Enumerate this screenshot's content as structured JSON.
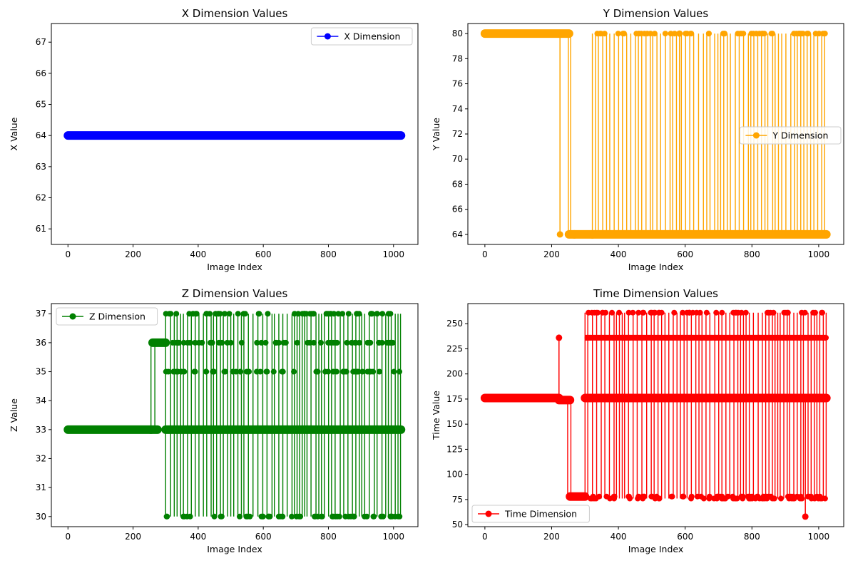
{
  "chart_data": [
    {
      "type": "line",
      "title": "X Dimension Values",
      "xlabel": "Image Index",
      "ylabel": "X Value",
      "xlim": [
        -51,
        1075
      ],
      "ylim": [
        60.5,
        67.6
      ],
      "xticks": [
        0,
        200,
        400,
        600,
        800,
        1000
      ],
      "yticks": [
        61,
        62,
        63,
        64,
        65,
        66,
        67
      ],
      "legend_position": "top-right",
      "color": "#0000ff",
      "series": [
        {
          "name": "X Dimension",
          "marker": "circle",
          "x": [
            0,
            1023
          ],
          "values": [
            64,
            64
          ]
        }
      ],
      "blocks": []
    },
    {
      "type": "line",
      "title": "Y Dimension Values",
      "xlabel": "Image Index",
      "ylabel": "Y Value",
      "xlim": [
        -51,
        1075
      ],
      "ylim": [
        63.2,
        80.8
      ],
      "xticks": [
        0,
        200,
        400,
        600,
        800,
        1000
      ],
      "yticks": [
        64,
        66,
        68,
        70,
        72,
        74,
        76,
        78,
        80
      ],
      "legend_position": "center-right",
      "color": "#ffa500",
      "series": [
        {
          "name": "Y Dimension",
          "marker": "circle",
          "x": [],
          "values": []
        }
      ],
      "levels": [
        80,
        64
      ],
      "segments": [
        [
          0,
          252,
          80
        ],
        [
          252,
          268,
          64
        ],
        [
          268,
          322,
          64
        ],
        [
          322,
          1023,
          64
        ]
      ],
      "spikes": [
        [
          225,
          64
        ],
        [
          583,
          80
        ]
      ],
      "blocks": [
        {
          "x": [
            250,
            268
          ],
          "color": "#ffa500",
          "range": [
            64,
            80
          ]
        },
        {
          "x": [
            322,
            1023
          ],
          "color": "#ffa500",
          "range": [
            64,
            80
          ]
        }
      ]
    },
    {
      "type": "line",
      "title": "Z Dimension Values",
      "xlabel": "Image Index",
      "ylabel": "Z Value",
      "xlim": [
        -51,
        1075
      ],
      "ylim": [
        29.65,
        37.35
      ],
      "xticks": [
        0,
        200,
        400,
        600,
        800,
        1000
      ],
      "yticks": [
        30,
        31,
        32,
        33,
        34,
        35,
        36,
        37
      ],
      "legend_position": "top-left",
      "color": "#008000",
      "series": [
        {
          "name": "Z Dimension",
          "marker": "circle",
          "x": [],
          "values": []
        }
      ],
      "segments": [
        [
          0,
          255,
          33
        ],
        [
          255,
          275,
          33
        ],
        [
          260,
          300,
          36
        ],
        [
          300,
          1023,
          33
        ]
      ],
      "blocks": [
        {
          "x": [
            255,
            275
          ],
          "color": "#008000",
          "range": [
            33,
            36
          ]
        },
        {
          "x": [
            300,
            1023
          ],
          "color": "#008000",
          "range": [
            30,
            37
          ]
        }
      ]
    },
    {
      "type": "line",
      "title": "Time Dimension Values",
      "xlabel": "Image Index",
      "ylabel": "Time Value",
      "xlim": [
        -51,
        1075
      ],
      "ylim": [
        48,
        270
      ],
      "xticks": [
        0,
        200,
        400,
        600,
        800,
        1000
      ],
      "yticks": [
        50,
        75,
        100,
        125,
        150,
        175,
        200,
        225,
        250
      ],
      "legend_position": "bottom-left",
      "color": "#ff0000",
      "series": [
        {
          "name": "Time Dimension",
          "marker": "circle",
          "x": [],
          "values": []
        }
      ],
      "segments": [
        [
          0,
          222,
          176
        ],
        [
          222,
          255,
          174
        ],
        [
          255,
          300,
          78
        ],
        [
          300,
          1023,
          176
        ]
      ],
      "spikes": [
        [
          222,
          236
        ],
        [
          960,
          58
        ]
      ],
      "blocks": [
        {
          "x": [
            248,
            268
          ],
          "color": "#ff0000",
          "range": [
            77,
            176
          ]
        },
        {
          "x": [
            300,
            1023
          ],
          "color": "#ff0000",
          "range": [
            76,
            261
          ]
        }
      ]
    }
  ]
}
